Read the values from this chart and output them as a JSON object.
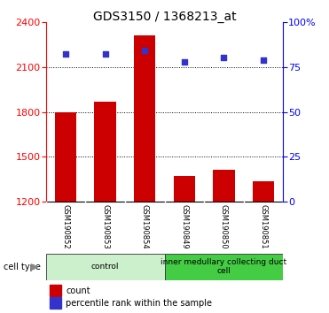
{
  "title": "GDS3150 / 1368213_at",
  "samples": [
    "GSM190852",
    "GSM190853",
    "GSM190854",
    "GSM190849",
    "GSM190850",
    "GSM190851"
  ],
  "counts": [
    1800,
    1870,
    2310,
    1370,
    1415,
    1335
  ],
  "percentiles": [
    82,
    82,
    84,
    78,
    80,
    79
  ],
  "ylim_left": [
    1200,
    2400
  ],
  "ylim_right": [
    0,
    100
  ],
  "yticks_left": [
    1200,
    1500,
    1800,
    2100,
    2400
  ],
  "yticks_right": [
    0,
    25,
    50,
    75,
    100
  ],
  "bar_color": "#cc0000",
  "dot_color": "#3333cc",
  "bar_width": 0.55,
  "cell_types": [
    {
      "label": "control",
      "indices": [
        0,
        1,
        2
      ],
      "color": "#ccf0cc"
    },
    {
      "label": "inner medullary collecting duct\ncell",
      "indices": [
        3,
        4,
        5
      ],
      "color": "#44cc44"
    }
  ],
  "cell_type_label": "cell type",
  "legend_count_label": "count",
  "legend_percentile_label": "percentile rank within the sample",
  "background_color": "#ffffff",
  "tick_area_color": "#cccccc",
  "title_fontsize": 10,
  "axis_fontsize": 8,
  "label_fontsize": 6,
  "legend_fontsize": 7
}
